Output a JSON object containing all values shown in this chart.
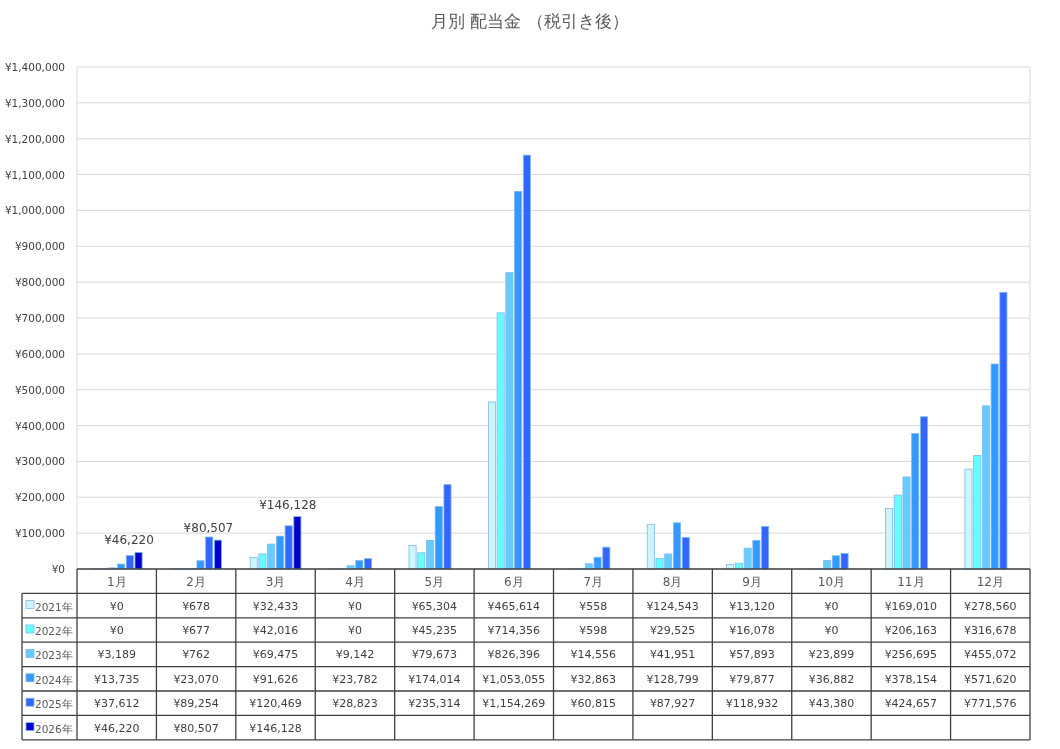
{
  "chart_data": {
    "type": "bar",
    "title": "月別 配当金 （税引き後）",
    "categories": [
      "1月",
      "2月",
      "3月",
      "4月",
      "5月",
      "6月",
      "7月",
      "8月",
      "9月",
      "10月",
      "11月",
      "12月"
    ],
    "series": [
      {
        "name": "2021年",
        "color": "#ccf5ff",
        "values": [
          0,
          678,
          32433,
          0,
          65304,
          465614,
          558,
          124543,
          13120,
          0,
          169010,
          278560
        ],
        "value_labels": [
          "¥0",
          "¥678",
          "¥32,433",
          "¥0",
          "¥65,304",
          "¥465,614",
          "¥558",
          "¥124,543",
          "¥13,120",
          "¥0",
          "¥169,010",
          "¥278,560"
        ]
      },
      {
        "name": "2022年",
        "color": "#66ffff",
        "values": [
          0,
          677,
          42016,
          0,
          45235,
          714356,
          598,
          29525,
          16078,
          0,
          206163,
          316678
        ],
        "value_labels": [
          "¥0",
          "¥677",
          "¥42,016",
          "¥0",
          "¥45,235",
          "¥714,356",
          "¥598",
          "¥29,525",
          "¥16,078",
          "¥0",
          "¥206,163",
          "¥316,678"
        ]
      },
      {
        "name": "2023年",
        "color": "#66ccff",
        "values": [
          3189,
          762,
          69475,
          9142,
          79673,
          826396,
          14556,
          41951,
          57893,
          23899,
          256695,
          455072
        ],
        "value_labels": [
          "¥3,189",
          "¥762",
          "¥69,475",
          "¥9,142",
          "¥79,673",
          "¥826,396",
          "¥14,556",
          "¥41,951",
          "¥57,893",
          "¥23,899",
          "¥256,695",
          "¥455,072"
        ]
      },
      {
        "name": "2024年",
        "color": "#3399ff",
        "values": [
          13735,
          23070,
          91626,
          23782,
          174014,
          1053055,
          32863,
          128799,
          79877,
          36882,
          378154,
          571620
        ],
        "value_labels": [
          "¥13,735",
          "¥23,070",
          "¥91,626",
          "¥23,782",
          "¥174,014",
          "¥1,053,055",
          "¥32,863",
          "¥128,799",
          "¥79,877",
          "¥36,882",
          "¥378,154",
          "¥571,620"
        ]
      },
      {
        "name": "2025年",
        "color": "#3366ff",
        "values": [
          37612,
          89254,
          120469,
          28823,
          235314,
          1154269,
          60815,
          87927,
          118932,
          43380,
          424657,
          771576
        ],
        "value_labels": [
          "¥37,612",
          "¥89,254",
          "¥120,469",
          "¥28,823",
          "¥235,314",
          "¥1,154,269",
          "¥60,815",
          "¥87,927",
          "¥118,932",
          "¥43,380",
          "¥424,657",
          "¥771,576"
        ]
      },
      {
        "name": "2026年",
        "color": "#0000cc",
        "data_labels": true,
        "values": [
          46220,
          80507,
          146128,
          null,
          null,
          null,
          null,
          null,
          null,
          null,
          null,
          null
        ],
        "value_labels": [
          "¥46,220",
          "¥80,507",
          "¥146,128",
          null,
          null,
          null,
          null,
          null,
          null,
          null,
          null,
          null
        ]
      }
    ],
    "ylim": [
      0,
      1400000
    ],
    "yticks": [
      {
        "value": 0,
        "label": "¥0"
      },
      {
        "value": 100000,
        "label": "¥100,000"
      },
      {
        "value": 200000,
        "label": "¥200,000"
      },
      {
        "value": 300000,
        "label": "¥300,000"
      },
      {
        "value": 400000,
        "label": "¥400,000"
      },
      {
        "value": 500000,
        "label": "¥500,000"
      },
      {
        "value": 600000,
        "label": "¥600,000"
      },
      {
        "value": 700000,
        "label": "¥700,000"
      },
      {
        "value": 800000,
        "label": "¥800,000"
      },
      {
        "value": 900000,
        "label": "¥900,000"
      },
      {
        "value": 1000000,
        "label": "¥1,000,000"
      },
      {
        "value": 1100000,
        "label": "¥1,100,000"
      },
      {
        "value": 1200000,
        "label": "¥1,200,000"
      },
      {
        "value": 1300000,
        "label": "¥1,300,000"
      },
      {
        "value": 1400000,
        "label": "¥1,400,000"
      }
    ],
    "grid": "y",
    "legend": "bottom left"
  }
}
